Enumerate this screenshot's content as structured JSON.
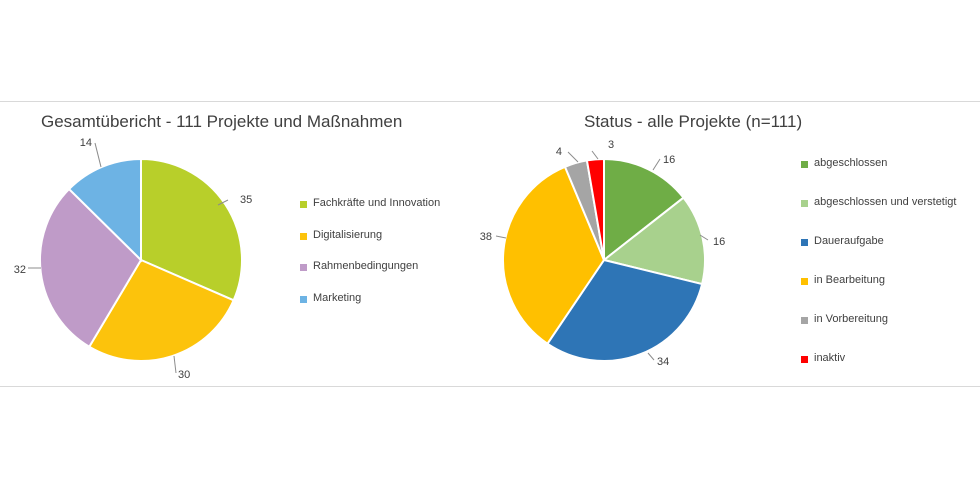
{
  "chart_data": [
    {
      "type": "pie",
      "title": "Gesamtübericht - 111 Projekte und Maßnahmen",
      "legend_position": "right",
      "categories": [
        "Fachkräfte und Innovation",
        "Digitalisierung",
        "Rahmenbedingungen",
        "Marketing"
      ],
      "values": [
        35,
        30,
        32,
        14
      ],
      "colors": [
        "#b8cf2a",
        "#fcc30c",
        "#bf9bc8",
        "#6db3e4"
      ]
    },
    {
      "type": "pie",
      "title": "Status -  alle Projekte (n=111)",
      "legend_position": "right",
      "categories": [
        "abgeschlossen",
        "abgeschlossen und verstetigt",
        "Daueraufgabe",
        "in Bearbeitung",
        "in Vorbereitung",
        "inaktiv"
      ],
      "values": [
        16,
        16,
        34,
        38,
        4,
        3
      ],
      "colors": [
        "#6fad46",
        "#a8d18d",
        "#2e75b6",
        "#ffc000",
        "#a5a5a5",
        "#ff0000"
      ]
    }
  ]
}
